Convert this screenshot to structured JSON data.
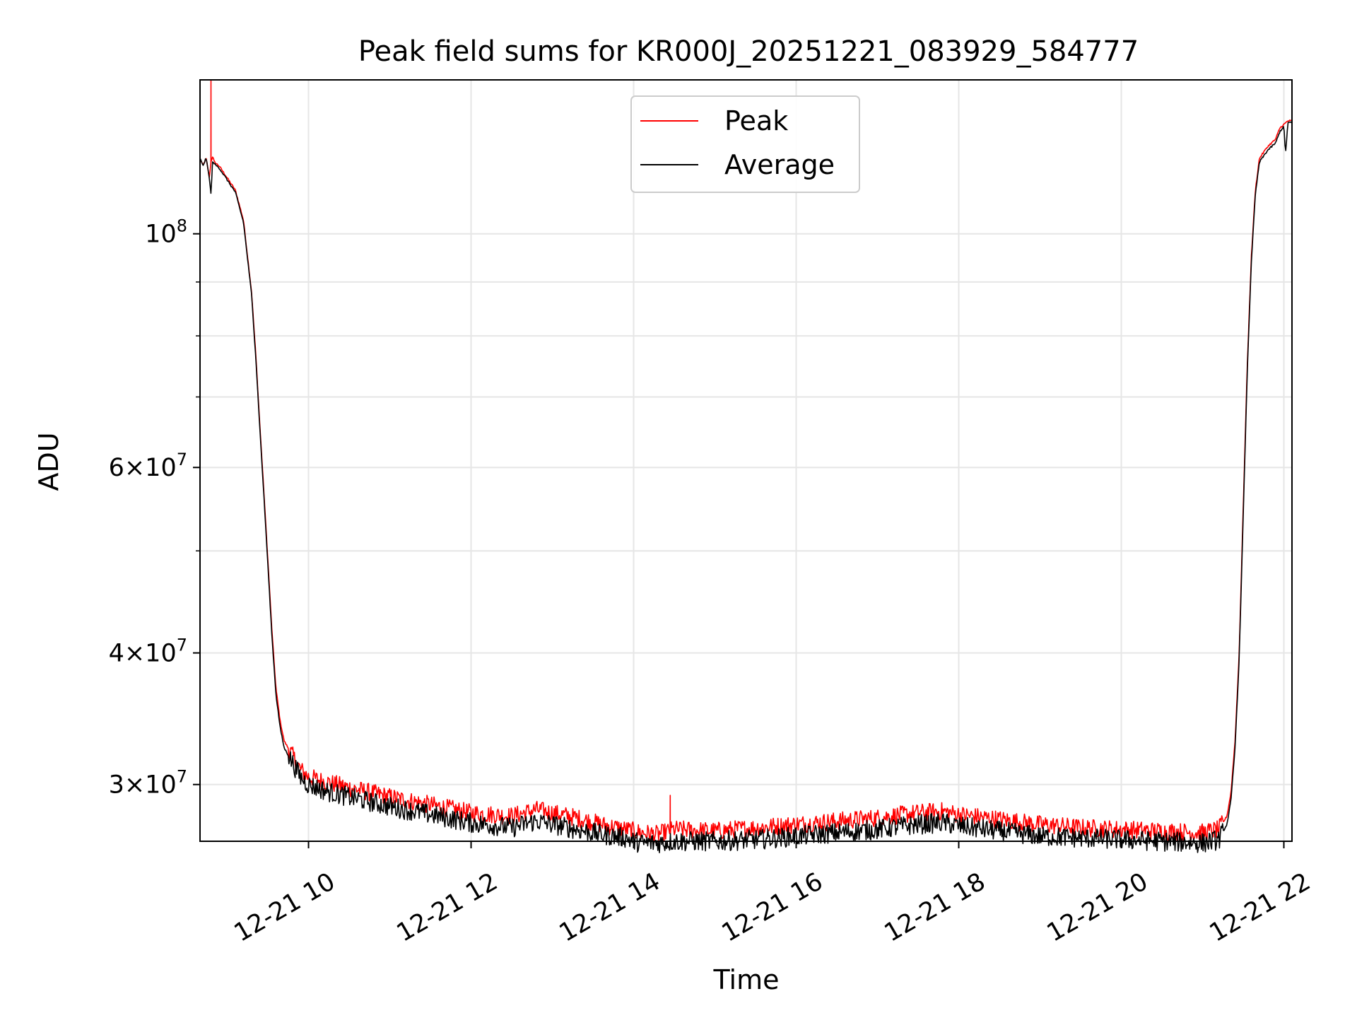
{
  "chart_data": {
    "type": "line",
    "title": "Peak field sums for KR000J_20251221_083929_584777",
    "xlabel": "Time",
    "ylabel": "ADU",
    "yscale": "log",
    "xlim_hours": [
      8.665,
      22.1
    ],
    "ylim": [
      26500000,
      140000000
    ],
    "grid": true,
    "legend_position": "top-center",
    "x_ticks": [
      {
        "value": 10,
        "label": "12-21 10"
      },
      {
        "value": 12,
        "label": "12-21 12"
      },
      {
        "value": 14,
        "label": "12-21 14"
      },
      {
        "value": 16,
        "label": "12-21 16"
      },
      {
        "value": 18,
        "label": "12-21 18"
      },
      {
        "value": 20,
        "label": "12-21 20"
      },
      {
        "value": 22,
        "label": "12-21 22"
      }
    ],
    "y_major_ticks": [
      {
        "value": 100000000,
        "mantissa": "",
        "base": "10",
        "exp": "8"
      },
      {
        "value": 60000000,
        "mantissa": "6",
        "base": "10",
        "exp": "7"
      },
      {
        "value": 40000000,
        "mantissa": "4",
        "base": "10",
        "exp": "7"
      },
      {
        "value": 30000000,
        "mantissa": "3",
        "base": "10",
        "exp": "7"
      }
    ],
    "y_minor_gridlines": [
      50000000,
      70000000,
      80000000,
      90000000
    ],
    "series": [
      {
        "name": "Peak",
        "color": "#ff0000",
        "x": [
          8.665,
          8.7,
          8.74,
          8.78,
          8.8,
          8.82,
          8.84,
          8.9,
          9.0,
          9.1,
          9.2,
          9.3,
          9.35,
          9.4,
          9.45,
          9.5,
          9.55,
          9.6,
          9.65,
          9.7,
          9.8,
          9.9,
          10.0,
          10.2,
          10.5,
          11.0,
          11.5,
          12.0,
          12.5,
          12.8,
          13.0,
          13.3,
          13.6,
          13.9,
          14.0,
          14.1,
          14.3,
          14.5,
          15.0,
          15.5,
          16.0,
          16.5,
          17.0,
          17.5,
          17.8,
          18.0,
          18.5,
          19.0,
          19.5,
          20.0,
          20.5,
          21.0,
          21.2,
          21.3,
          21.35,
          21.4,
          21.45,
          21.5,
          21.55,
          21.6,
          21.65,
          21.7,
          21.8,
          21.9,
          21.95,
          22.0,
          22.05,
          22.1
        ],
        "values": [
          118000000,
          116000000,
          118000000,
          113000000,
          117000000,
          118500000,
          117000000,
          116000000,
          113000000,
          110000000,
          103000000,
          88000000,
          77000000,
          66000000,
          57000000,
          49000000,
          42000000,
          37000000,
          34500000,
          33000000,
          32000000,
          31000000,
          30500000,
          30200000,
          29800000,
          29200000,
          28700000,
          28200000,
          28000000,
          28400000,
          28200000,
          27900000,
          27500000,
          27200000,
          27100000,
          27000000,
          26900000,
          27200000,
          27100000,
          27300000,
          27500000,
          27700000,
          27900000,
          28200000,
          28300000,
          28100000,
          27800000,
          27500000,
          27300000,
          27200000,
          27100000,
          27000000,
          27200000,
          28000000,
          29500000,
          33000000,
          40000000,
          55000000,
          75000000,
          95000000,
          110000000,
          118000000,
          121000000,
          123000000,
          126000000,
          127000000,
          128000000,
          128000000
        ],
        "spikes": [
          {
            "x": 8.8,
            "value": 140000000
          },
          {
            "x": 14.45,
            "value": 29300000
          }
        ],
        "noise_fraction": 0.02
      },
      {
        "name": "Average",
        "color": "#000000",
        "x": [
          8.665,
          8.7,
          8.74,
          8.78,
          8.8,
          8.82,
          8.84,
          8.9,
          9.0,
          9.1,
          9.2,
          9.3,
          9.35,
          9.4,
          9.45,
          9.5,
          9.55,
          9.6,
          9.65,
          9.7,
          9.8,
          9.9,
          10.0,
          10.2,
          10.5,
          11.0,
          11.5,
          12.0,
          12.5,
          12.8,
          13.0,
          13.3,
          13.6,
          13.9,
          14.0,
          14.1,
          14.3,
          14.5,
          15.0,
          15.5,
          16.0,
          16.5,
          17.0,
          17.5,
          17.8,
          18.0,
          18.5,
          19.0,
          19.5,
          20.0,
          20.5,
          21.0,
          21.2,
          21.3,
          21.35,
          21.4,
          21.45,
          21.5,
          21.55,
          21.6,
          21.65,
          21.7,
          21.8,
          21.9,
          21.95,
          22.0,
          22.02,
          22.05,
          22.1
        ],
        "values": [
          118000000,
          116000000,
          118000000,
          113000000,
          109000000,
          117500000,
          116500000,
          115500000,
          112500000,
          109500000,
          102500000,
          87500000,
          76500000,
          65500000,
          56500000,
          48500000,
          41500000,
          36500000,
          34000000,
          32500000,
          31500000,
          30500000,
          30000000,
          29600000,
          29200000,
          28600000,
          28100000,
          27600000,
          27300000,
          27700000,
          27500000,
          27200000,
          26900000,
          26700000,
          26500000,
          26400000,
          26400000,
          26500000,
          26500000,
          26600000,
          26800000,
          27000000,
          27200000,
          27500000,
          27600000,
          27400000,
          27100000,
          26800000,
          26700000,
          26600000,
          26500000,
          26400000,
          26600000,
          27500000,
          29000000,
          32500000,
          39500000,
          54000000,
          74000000,
          94000000,
          109000000,
          117000000,
          120000000,
          122000000,
          125000000,
          126500000,
          119000000,
          127500000,
          127500000
        ],
        "noise_fraction": 0.022
      }
    ]
  }
}
